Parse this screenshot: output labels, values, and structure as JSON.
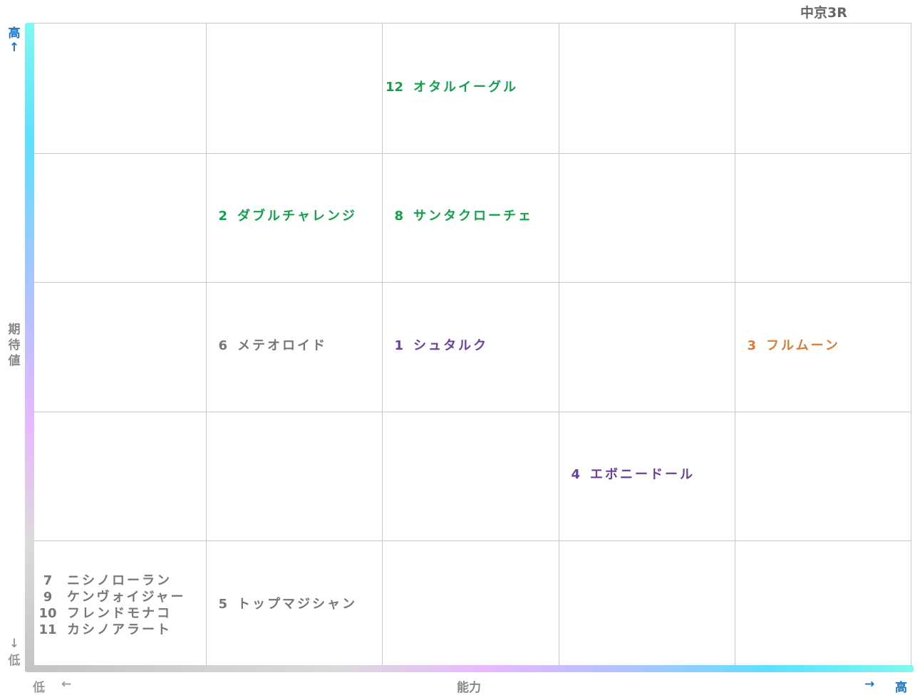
{
  "title": "中京3R",
  "axes": {
    "y_title": "期待値",
    "y_high": "高",
    "y_up_arrow": "↑",
    "y_low": "低",
    "y_down_arrow": "↓",
    "x_title": "能力",
    "x_low": "低",
    "x_left_arrow": "←",
    "x_right_arrow": "→",
    "x_high": "高"
  },
  "colors": {
    "green": "#12a14b",
    "purple": "#6b3fa0",
    "orange": "#e07a2f",
    "gray": "#777777",
    "axis_blue": "#1a75c9",
    "axis_gray": "#999999"
  },
  "chart_data": {
    "type": "scatter",
    "xlabel": "能力",
    "ylabel": "期待値",
    "x_levels": 5,
    "y_levels": 5,
    "grid": true,
    "points": [
      {
        "num": "12",
        "name": "オタルイーグル",
        "x": 3,
        "y": 5,
        "color": "green"
      },
      {
        "num": "2",
        "name": "ダブルチャレンジ",
        "x": 2,
        "y": 4,
        "color": "green"
      },
      {
        "num": "8",
        "name": "サンタクローチェ",
        "x": 3,
        "y": 4,
        "color": "green"
      },
      {
        "num": "6",
        "name": "メテオロイド",
        "x": 2,
        "y": 3,
        "color": "gray"
      },
      {
        "num": "1",
        "name": "シュタルク",
        "x": 3,
        "y": 3,
        "color": "purple"
      },
      {
        "num": "3",
        "name": "フルムーン",
        "x": 5,
        "y": 3,
        "color": "orange"
      },
      {
        "num": "4",
        "name": "エボニードール",
        "x": 4,
        "y": 2,
        "color": "purple"
      },
      {
        "num": "5",
        "name": "トップマジシャン",
        "x": 2,
        "y": 1,
        "color": "gray"
      }
    ],
    "cell_1_1": [
      {
        "num": "7",
        "name": "ニシノローラン"
      },
      {
        "num": "9",
        "name": "ケンヴォイジャー"
      },
      {
        "num": "10",
        "name": "フレンドモナコ"
      },
      {
        "num": "11",
        "name": "カシノアラート"
      }
    ]
  }
}
